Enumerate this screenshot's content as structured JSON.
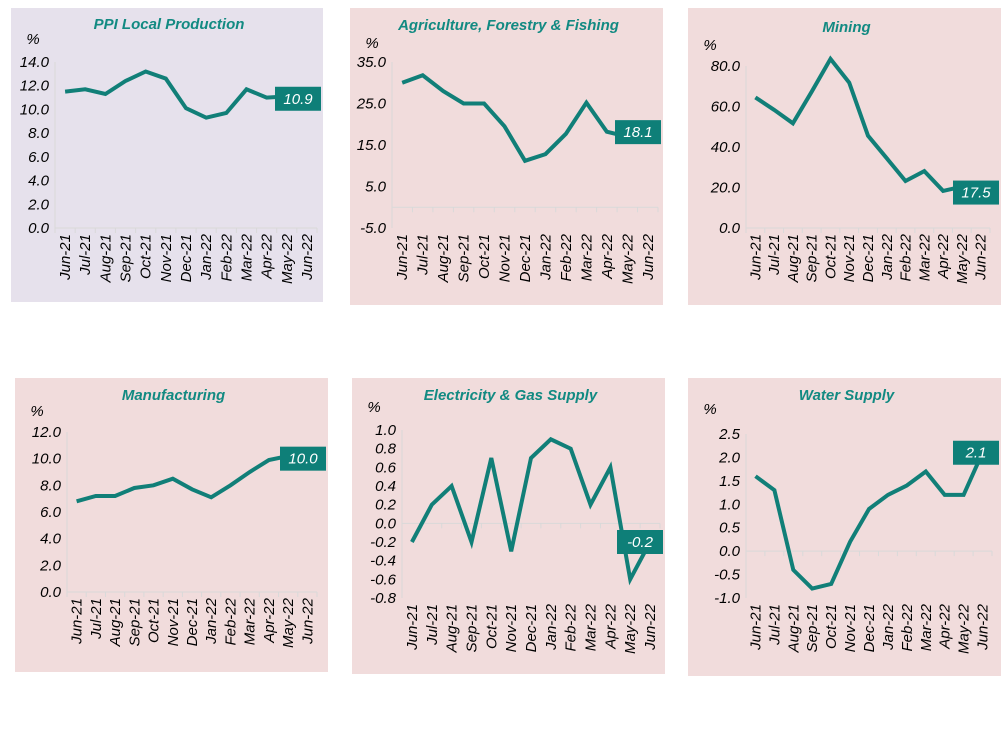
{
  "colors": {
    "line": "#117f78",
    "title": "#128a82",
    "label_bg": "#0e7f78",
    "label_text": "#ffffff",
    "axis": "#d9d9d9",
    "panel_lavender": "#e6e1ec",
    "panel_pink": "#f1dcdc"
  },
  "chart_data": [
    {
      "type": "line",
      "title": "PPI Local Production",
      "ylabel": "%",
      "xlabel": "",
      "background": "lavender",
      "categories": [
        "Jun-21",
        "Jul-21",
        "Aug-21",
        "Sep-21",
        "Oct-21",
        "Nov-21",
        "Dec-21",
        "Jan-22",
        "Feb-22",
        "Mar-22",
        "Apr-22",
        "May-22",
        "Jun-22"
      ],
      "values": [
        11.5,
        11.7,
        11.3,
        12.4,
        13.2,
        12.6,
        10.1,
        9.3,
        9.7,
        11.7,
        11.0,
        11.1,
        10.9
      ],
      "yticks": [
        "14.0",
        "12.0",
        "10.0",
        "8.0",
        "6.0",
        "4.0",
        "2.0",
        "0.0"
      ],
      "ylim": [
        0,
        14
      ],
      "xaxis_at": 0,
      "last_label": "10.9",
      "grid": false
    },
    {
      "type": "line",
      "title": "Agriculture, Forestry & Fishing",
      "ylabel": "%",
      "xlabel": "",
      "background": "pink",
      "categories": [
        "Jun-21",
        "Jul-21",
        "Aug-21",
        "Sep-21",
        "Oct-21",
        "Nov-21",
        "Dec-21",
        "Jan-22",
        "Feb-22",
        "Mar-22",
        "Apr-22",
        "May-22",
        "Jun-22"
      ],
      "values": [
        30.0,
        31.8,
        28.0,
        25.0,
        25.0,
        19.5,
        11.2,
        12.8,
        17.7,
        25.2,
        18.2,
        17.0,
        18.1
      ],
      "yticks": [
        "35.0",
        "25.0",
        "15.0",
        "5.0",
        "-5.0"
      ],
      "ylim": [
        -5,
        35
      ],
      "xaxis_at": 0,
      "last_label": "18.1",
      "grid": false
    },
    {
      "type": "line",
      "title": "Mining",
      "ylabel": "%",
      "xlabel": "",
      "background": "pink",
      "categories": [
        "Jun-21",
        "Jul-21",
        "Aug-21",
        "Sep-21",
        "Oct-21",
        "Nov-21",
        "Dec-21",
        "Jan-22",
        "Feb-22",
        "Mar-22",
        "Apr-22",
        "May-22",
        "Jun-22"
      ],
      "values": [
        64.5,
        58.3,
        51.7,
        67.3,
        83.5,
        71.8,
        45.6,
        34.4,
        23.2,
        28.1,
        18.3,
        20.4,
        17.5
      ],
      "yticks": [
        "80.0",
        "60.0",
        "40.0",
        "20.0",
        "0.0"
      ],
      "ylim": [
        0,
        80
      ],
      "xaxis_at": 0,
      "last_label": "17.5",
      "grid": false
    },
    {
      "type": "line",
      "title": "Manufacturing",
      "ylabel": "%",
      "xlabel": "",
      "background": "pink",
      "categories": [
        "Jun-21",
        "Jul-21",
        "Aug-21",
        "Sep-21",
        "Oct-21",
        "Nov-21",
        "Dec-21",
        "Jan-22",
        "Feb-22",
        "Mar-22",
        "Apr-22",
        "May-22",
        "Jun-22"
      ],
      "values": [
        6.8,
        7.2,
        7.2,
        7.8,
        8.0,
        8.5,
        7.7,
        7.1,
        8.0,
        9.0,
        9.9,
        10.2,
        10.0
      ],
      "yticks": [
        "12.0",
        "10.0",
        "8.0",
        "6.0",
        "4.0",
        "2.0",
        "0.0"
      ],
      "ylim": [
        0,
        12
      ],
      "xaxis_at": 0,
      "last_label": "10.0",
      "grid": false
    },
    {
      "type": "line",
      "title": "Electricity & Gas Supply",
      "ylabel": "%",
      "xlabel": "",
      "background": "pink",
      "categories": [
        "Jun-21",
        "Jul-21",
        "Aug-21",
        "Sep-21",
        "Oct-21",
        "Nov-21",
        "Dec-21",
        "Jan-22",
        "Feb-22",
        "Mar-22",
        "Apr-22",
        "May-22",
        "Jun-22"
      ],
      "values": [
        -0.2,
        0.2,
        0.4,
        -0.2,
        0.7,
        -0.3,
        0.7,
        0.9,
        0.8,
        0.2,
        0.6,
        -0.6,
        -0.2
      ],
      "yticks": [
        "1.0",
        "0.8",
        "0.6",
        "0.4",
        "0.2",
        "0.0",
        "-0.2",
        "-0.4",
        "-0.6",
        "-0.8"
      ],
      "ylim": [
        -0.8,
        1.0
      ],
      "xaxis_at": 0,
      "last_label": "-0.2",
      "grid": false
    },
    {
      "type": "line",
      "title": "Water Supply",
      "ylabel": "%",
      "xlabel": "",
      "background": "pink",
      "categories": [
        "Jun-21",
        "Jul-21",
        "Aug-21",
        "Sep-21",
        "Oct-21",
        "Nov-21",
        "Dec-21",
        "Jan-22",
        "Feb-22",
        "Mar-22",
        "Apr-22",
        "May-22",
        "Jun-22"
      ],
      "values": [
        1.6,
        1.3,
        -0.4,
        -0.8,
        -0.7,
        0.2,
        0.9,
        1.2,
        1.4,
        1.7,
        1.2,
        1.2,
        2.1
      ],
      "yticks": [
        "2.5",
        "2.0",
        "1.5",
        "1.0",
        "0.5",
        "0.0",
        "-0.5",
        "-1.0"
      ],
      "ylim": [
        -1.0,
        2.5
      ],
      "xaxis_at": 0,
      "last_label": "2.1",
      "grid": false
    }
  ]
}
